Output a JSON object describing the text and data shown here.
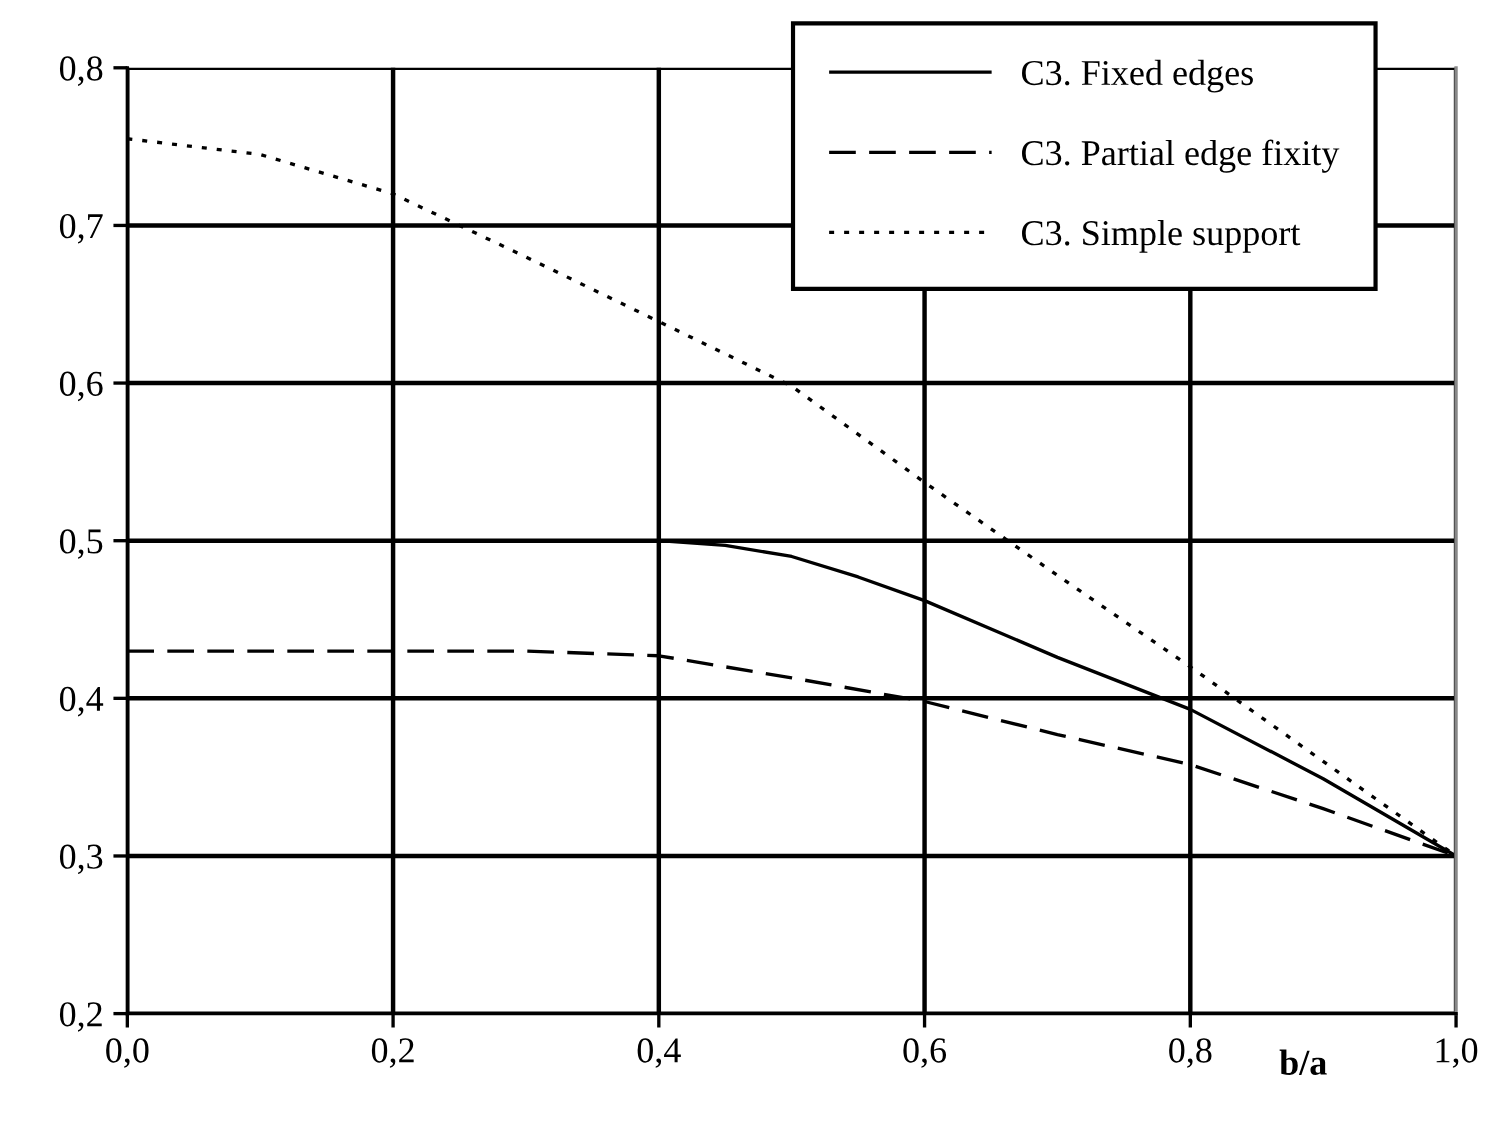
{
  "chart_data": {
    "type": "line",
    "xlabel": "b/a",
    "xlim": [
      0.0,
      1.0
    ],
    "ylim": [
      0.2,
      0.8
    ],
    "xticks": [
      {
        "value": 0.0,
        "label": "0,0"
      },
      {
        "value": 0.2,
        "label": "0,2"
      },
      {
        "value": 0.4,
        "label": "0,4"
      },
      {
        "value": 0.6,
        "label": "0,6"
      },
      {
        "value": 0.8,
        "label": "0,8"
      },
      {
        "value": 1.0,
        "label": "1,0"
      }
    ],
    "yticks": [
      {
        "value": 0.2,
        "label": "0,2"
      },
      {
        "value": 0.3,
        "label": "0,3"
      },
      {
        "value": 0.4,
        "label": "0,4"
      },
      {
        "value": 0.5,
        "label": "0,5"
      },
      {
        "value": 0.6,
        "label": "0,6"
      },
      {
        "value": 0.7,
        "label": "0,7"
      },
      {
        "value": 0.8,
        "label": "0,8"
      }
    ],
    "grid": true,
    "legend": "top right",
    "marker": "none",
    "series": [
      {
        "name": "C3. Fixed edges",
        "color": "#000000",
        "line_style": "solid",
        "x": [
          0.1,
          0.2,
          0.3,
          0.4,
          0.45,
          0.5,
          0.55,
          0.6,
          0.7,
          0.8,
          0.9,
          1.0
        ],
        "values": [
          0.5,
          0.5,
          0.5,
          0.5,
          0.497,
          0.49,
          0.477,
          0.462,
          0.426,
          0.393,
          0.349,
          0.3
        ]
      },
      {
        "name": "C3. Partial edge fixity",
        "color": "#000000",
        "line_style": "dashed",
        "x": [
          0.0,
          0.1,
          0.2,
          0.3,
          0.4,
          0.5,
          0.6,
          0.7,
          0.8,
          0.9,
          1.0
        ],
        "values": [
          0.43,
          0.43,
          0.43,
          0.43,
          0.427,
          0.413,
          0.398,
          0.377,
          0.358,
          0.33,
          0.3
        ]
      },
      {
        "name": "C3. Simple support",
        "color": "#000000",
        "line_style": "dotted",
        "x": [
          0.0,
          0.1,
          0.2,
          0.25,
          0.3,
          0.5,
          0.6,
          0.7,
          0.8,
          0.9,
          1.0
        ],
        "values": [
          0.755,
          0.745,
          0.72,
          0.7,
          0.68,
          0.598,
          0.537,
          0.478,
          0.42,
          0.36,
          0.3
        ]
      }
    ]
  }
}
